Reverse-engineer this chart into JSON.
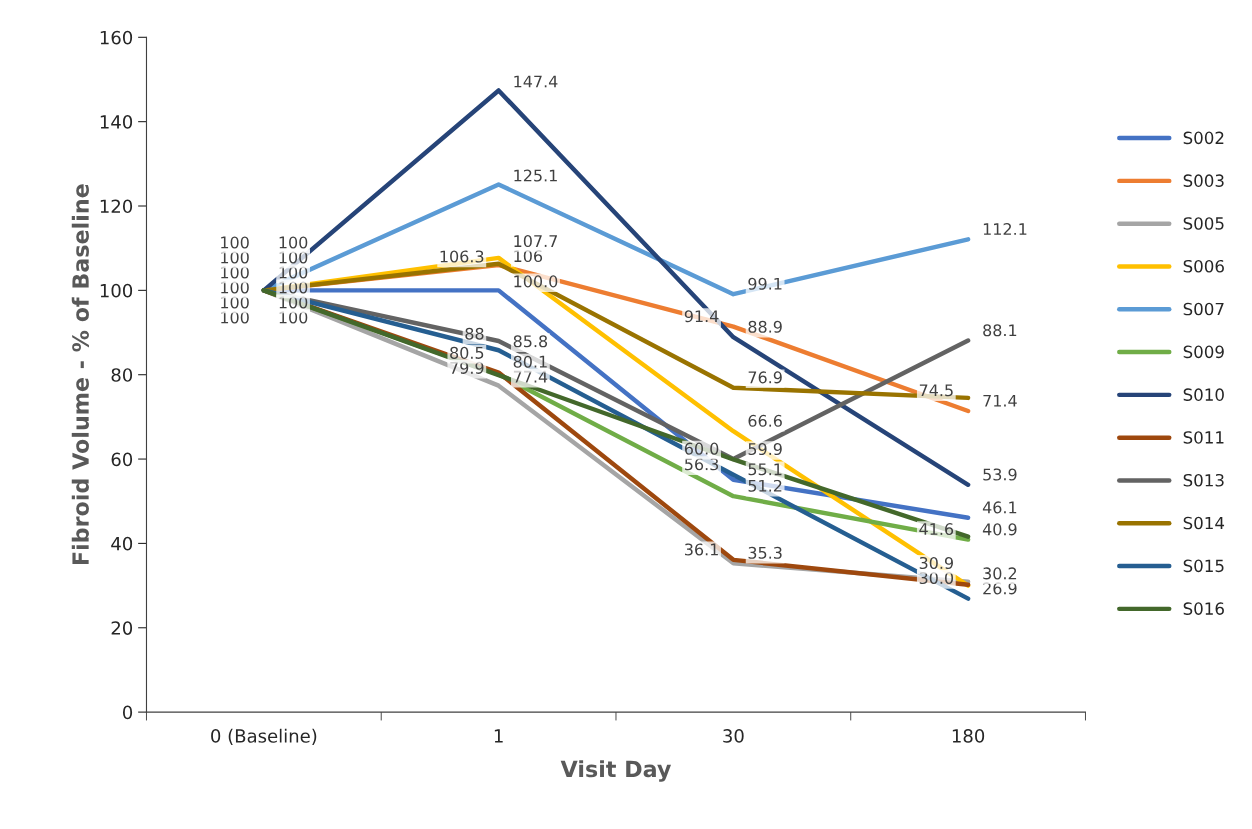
{
  "chart_data": {
    "type": "line",
    "xlabel": "Visit Day",
    "ylabel": "Fibroid Volume - % of Baseline",
    "categories": [
      "0 (Baseline)",
      "1",
      "30",
      "180"
    ],
    "ylim": [
      0,
      160
    ],
    "yticks": [
      0,
      20,
      40,
      60,
      80,
      100,
      120,
      140,
      160
    ],
    "grid": false,
    "legend": "right",
    "marker": "none",
    "line_style": "solid",
    "series": [
      {
        "name": "S002",
        "color": "#4472c4",
        "values": [
          100,
          100.0,
          55.1,
          46.1
        ],
        "value_labels": [
          "100",
          "100.0",
          "55.1",
          "46.1"
        ]
      },
      {
        "name": "S003",
        "color": "#ed7d31",
        "values": [
          100,
          106,
          91.4,
          71.4
        ],
        "value_labels": [
          "100",
          "106",
          "91.4",
          "71.4"
        ]
      },
      {
        "name": "S005",
        "color": "#a5a5a5",
        "values": [
          100,
          77.4,
          35.3,
          30.9
        ],
        "value_labels": [
          "100",
          "77.4",
          "35.3",
          "30.9"
        ]
      },
      {
        "name": "S006",
        "color": "#ffc000",
        "values": [
          100,
          107.7,
          66.6,
          30.0
        ],
        "value_labels": [
          "100",
          "107.7",
          "66.6",
          "30.0"
        ]
      },
      {
        "name": "S007",
        "color": "#5b9bd5",
        "values": [
          100,
          125.1,
          99.1,
          112.1
        ],
        "value_labels": [
          "100",
          "125.1",
          "99.1",
          "112.1"
        ]
      },
      {
        "name": "S009",
        "color": "#70ad47",
        "values": [
          100,
          80.1,
          51.2,
          40.9
        ],
        "value_labels": [
          "100",
          "80.1",
          "51.2",
          "40.9"
        ]
      },
      {
        "name": "S010",
        "color": "#264478",
        "values": [
          100,
          147.4,
          88.9,
          53.9
        ],
        "value_labels": [
          "100",
          "147.4",
          "88.9",
          "53.9"
        ]
      },
      {
        "name": "S011",
        "color": "#9e480e",
        "values": [
          100,
          80.5,
          36.1,
          30.2
        ],
        "value_labels": [
          "100",
          "80.5",
          "36.1",
          "30.2"
        ]
      },
      {
        "name": "S013",
        "color": "#636363",
        "values": [
          100,
          88,
          60.0,
          88.1
        ],
        "value_labels": [
          "100",
          "88",
          "60.0",
          "88.1"
        ]
      },
      {
        "name": "S014",
        "color": "#997300",
        "values": [
          100,
          106.3,
          76.9,
          74.5
        ],
        "value_labels": [
          "100",
          "106.3",
          "76.9",
          "74.5"
        ]
      },
      {
        "name": "S015",
        "color": "#255e91",
        "values": [
          100,
          85.8,
          56.3,
          26.9
        ],
        "value_labels": [
          "100",
          "85.8",
          "56.3",
          "26.9"
        ]
      },
      {
        "name": "S016",
        "color": "#43682b",
        "values": [
          100,
          79.9,
          59.9,
          41.6
        ],
        "value_labels": [
          "100",
          "79.9",
          "59.9",
          "41.6"
        ]
      }
    ]
  }
}
